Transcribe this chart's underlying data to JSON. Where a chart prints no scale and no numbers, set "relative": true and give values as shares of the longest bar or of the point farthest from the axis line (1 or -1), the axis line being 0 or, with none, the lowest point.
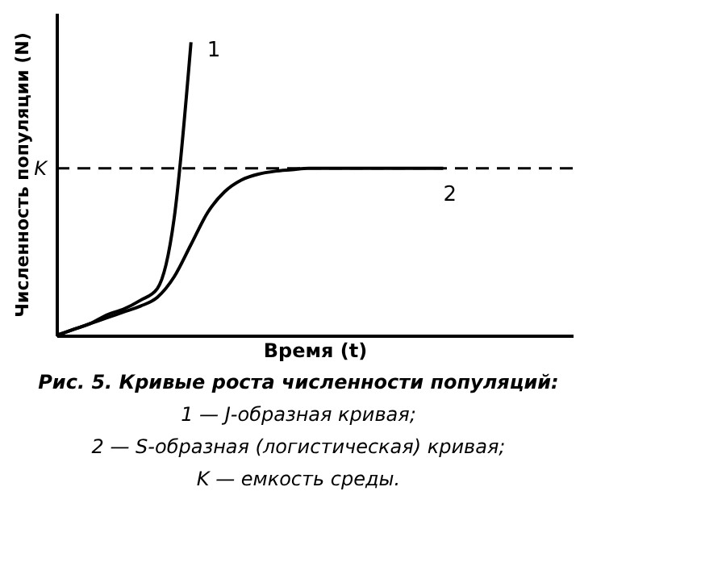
{
  "chart_data": {
    "type": "line",
    "relative": true,
    "xlabel": "Время (t)",
    "ylabel": "Численность популяции (N)",
    "categories": [
      null,
      null,
      null,
      null,
      null,
      null,
      null,
      null,
      null,
      null,
      null,
      null,
      null,
      null,
      null,
      null,
      null,
      null,
      null,
      null,
      null,
      null,
      null,
      null,
      null,
      null,
      null,
      null,
      null,
      null,
      null
    ],
    "series": [
      {
        "name": "1",
        "color": "#000000",
        "values": [
          0,
          0.02,
          0.04,
          0.07,
          0.09,
          0.12,
          0.16,
          0.4,
          1.0,
          null,
          null,
          null,
          null,
          null,
          null,
          null,
          null,
          null,
          null,
          null,
          null,
          null,
          null,
          null,
          null,
          null,
          null,
          null,
          null,
          null,
          null
        ]
      },
      {
        "name": "2",
        "color": "#000000",
        "values": [
          0,
          0.02,
          0.04,
          0.06,
          0.08,
          0.1,
          0.13,
          0.2,
          0.31,
          0.42,
          0.49,
          0.53,
          0.55,
          0.56,
          0.565,
          0.57,
          0.57,
          0.57,
          0.57,
          0.57,
          0.57,
          0.57,
          0.57,
          0.57,
          null,
          null,
          null,
          null,
          null,
          null,
          null
        ]
      }
    ],
    "ref_lines": [
      {
        "axis": "y",
        "value": 0.57,
        "label": "K",
        "color": "#000000",
        "line_style": "dashed"
      }
    ],
    "line_style": "solid",
    "marker": "none",
    "annotations": [
      "Рис. 5. Кривые роста численности популяций:",
      "1 — J-образная кривая;",
      "2 — S-образная (логистическая) кривая;",
      "K — емкость среды."
    ]
  }
}
